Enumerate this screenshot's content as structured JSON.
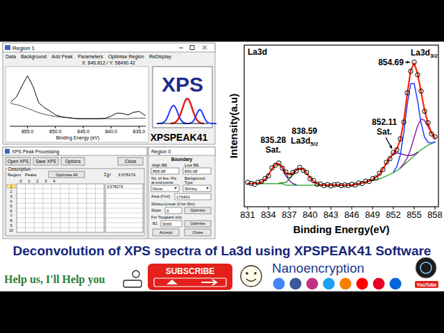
{
  "chart_data": [
    {
      "type": "line",
      "title": "La3d",
      "x_label": "Binding Energy(eV)",
      "y_label": "Intensity(a.u)",
      "x": [
        831,
        831.5,
        832,
        832.5,
        833,
        833.5,
        834,
        834.5,
        835,
        835.5,
        836,
        836.5,
        837,
        837.5,
        838,
        838.5,
        839,
        839.5,
        840,
        840.5,
        841,
        841.5,
        842,
        842.5,
        843,
        843.5,
        844,
        844.5,
        845,
        845.5,
        846,
        846.5,
        847,
        847.5,
        848,
        848.5,
        849,
        849.5,
        850,
        850.5,
        851,
        851.5,
        852,
        852.5,
        853,
        853.5,
        854,
        854.5,
        855,
        855.5,
        856,
        856.5,
        857,
        857.5,
        858
      ],
      "xlim": [
        830.5,
        858.5
      ],
      "xticks": [
        831,
        834,
        837,
        840,
        843,
        846,
        849,
        852,
        855,
        858
      ],
      "ylim": [
        0,
        105
      ],
      "tick_labels": "x",
      "grid": false,
      "series": [
        {
          "type": "line",
          "color": "#3cb043",
          "values": [
            15,
            15,
            15,
            15,
            15,
            15,
            15,
            15,
            15,
            15,
            15,
            14,
            14,
            14,
            14,
            14,
            14,
            14,
            14,
            14,
            14,
            14,
            14,
            14,
            14,
            14,
            14,
            14,
            14,
            14,
            14,
            14.5,
            15,
            15.5,
            16,
            16.5,
            17,
            17.5,
            18,
            19,
            20,
            21,
            22,
            23.5,
            25,
            27,
            29,
            31,
            33,
            35,
            37,
            38.5,
            40,
            41,
            42
          ]
        },
        {
          "type": "line",
          "color": "#6a1fb0",
          "values": [
            null,
            null,
            null,
            15.3,
            16.0,
            17.7,
            20.7,
            24.6,
            27.5,
            27.7,
            25.0,
            20.2,
            17.0,
            15.1,
            14.3,
            null,
            null,
            null,
            null,
            null,
            null,
            null,
            null,
            null,
            null,
            null,
            null,
            null,
            null,
            null,
            null,
            null,
            null,
            null,
            null,
            null,
            null,
            null,
            null,
            null,
            null,
            null,
            null,
            null,
            null,
            null,
            null,
            null,
            null,
            null,
            null,
            null,
            null,
            null,
            null
          ]
        },
        {
          "type": "line",
          "color": "#1f8f2a",
          "values": [
            null,
            null,
            null,
            null,
            null,
            null,
            null,
            null,
            null,
            15.2,
            15.7,
            15.8,
            17.9,
            20.7,
            23.5,
            25.0,
            24.2,
            21.8,
            18.8,
            16.4,
            15.0,
            14.3,
            null,
            null,
            null,
            null,
            null,
            null,
            null,
            null,
            null,
            null,
            null,
            null,
            null,
            null,
            null,
            null,
            null,
            null,
            null,
            null,
            null,
            null,
            null,
            null,
            null,
            null,
            null,
            null,
            null,
            null,
            null,
            null,
            null
          ]
        },
        {
          "type": "line",
          "color": "#7a1fa2",
          "values": [
            null,
            null,
            null,
            null,
            null,
            null,
            null,
            null,
            null,
            null,
            null,
            null,
            null,
            null,
            null,
            null,
            null,
            null,
            null,
            null,
            null,
            null,
            null,
            null,
            null,
            null,
            null,
            null,
            null,
            null,
            null,
            null,
            null,
            null,
            null,
            16.8,
            17.7,
            19.1,
            21.2,
            24.6,
            28.3,
            31.8,
            34.0,
            35.0,
            34.5,
            33.8,
            33.2,
            33.2,
            34.0,
            35.4,
            null,
            null,
            null,
            null,
            null
          ]
        },
        {
          "type": "line",
          "color": "#1e3cff",
          "values": [
            null,
            null,
            null,
            null,
            null,
            null,
            null,
            null,
            null,
            null,
            null,
            null,
            null,
            null,
            null,
            null,
            null,
            null,
            null,
            null,
            null,
            null,
            null,
            null,
            null,
            null,
            null,
            null,
            null,
            null,
            null,
            null,
            null,
            null,
            null,
            null,
            null,
            null,
            null,
            null,
            null,
            null,
            22.6,
            26.1,
            33.6,
            47.9,
            66.3,
            79.9,
            80.1,
            68.4,
            54.3,
            45.1,
            41.9,
            41.4,
            42.1
          ]
        },
        {
          "type": "line",
          "color": "#8e24aa",
          "values": [
            null,
            null,
            null,
            null,
            null,
            null,
            null,
            null,
            null,
            null,
            null,
            null,
            null,
            null,
            null,
            null,
            null,
            null,
            null,
            null,
            null,
            null,
            null,
            null,
            null,
            null,
            null,
            null,
            null,
            null,
            null,
            null,
            null,
            null,
            null,
            null,
            null,
            null,
            null,
            null,
            null,
            null,
            null,
            null,
            25.2,
            27.9,
            31.7,
            37.5,
            45.1,
            52.6,
            57.0,
            56.1,
            52.1,
            47.5,
            44.7
          ]
        },
        {
          "type": "line",
          "color": "#ff2200",
          "values": [
            15.0,
            15.0,
            15.1,
            15.3,
            16.0,
            17.7,
            20.7,
            24.6,
            27.5,
            27.9,
            25.7,
            22.0,
            20.9,
            21.8,
            23.8,
            25.0,
            24.2,
            21.8,
            18.8,
            16.4,
            15.0,
            14.3,
            14.1,
            14.0,
            14.0,
            14.0,
            14.0,
            14.0,
            14.0,
            14.0,
            14.0,
            14.5,
            15.0,
            15.5,
            16.1,
            16.8,
            17.7,
            19.1,
            21.2,
            24.6,
            28.3,
            31.8,
            34.6,
            37.6,
            43.3,
            55.6,
            73.2,
            88.6,
            93.2,
            86.4,
            74.4,
            62.7,
            54.0,
            47.9,
            44.8
          ]
        },
        {
          "type": "scatter",
          "marker": "circle",
          "color": "#000000",
          "values": [
            15.8,
            15.2,
            14.6,
            15.9,
            16.4,
            18.3,
            20.1,
            25.3,
            27.0,
            28.4,
            25.1,
            22.6,
            20.3,
            22.3,
            23.2,
            25.6,
            23.7,
            22.3,
            18.2,
            16.9,
            14.6,
            14.8,
            13.7,
            14.4,
            13.6,
            14.3,
            14.5,
            13.7,
            14.2,
            13.8,
            14.6,
            14.1,
            15.4,
            15.1,
            16.6,
            16.4,
            18.2,
            18.7,
            21.8,
            24.1,
            28.9,
            31.2,
            35.2,
            37.0,
            44.1,
            55.0,
            74.0,
            88.0,
            93.9,
            85.7,
            75.1,
            62.0,
            54.6,
            47.3,
            45.4
          ]
        }
      ],
      "annotations": [
        {
          "text": "835.28",
          "label": "Sat.",
          "x": 835.28,
          "y": 27.9
        },
        {
          "text": "838.59",
          "label": "La3d",
          "label_sub": "5/2",
          "x": 838.59,
          "y": 25.0
        },
        {
          "text": "852.11",
          "label": "Sat.",
          "x": 852.11,
          "y": 35.0
        },
        {
          "text": "854.69",
          "label": "La3d",
          "label_sub": "3/2",
          "x": 854.69,
          "y": 93.9
        }
      ]
    },
    {
      "type": "line",
      "x_label": "Binding Energy (eV)",
      "x": [
        831,
        832,
        833,
        834,
        835,
        836,
        837,
        838,
        839,
        840,
        841,
        842,
        843,
        844,
        845,
        846,
        847,
        848,
        849,
        850,
        851,
        852,
        853,
        854,
        855,
        856,
        857,
        858
      ],
      "xlim": [
        858.2,
        833.8
      ],
      "xticks": [
        {
          "value": 855,
          "label": "855.0"
        },
        {
          "value": 850,
          "label": "850.0"
        },
        {
          "value": 845,
          "label": "845.0"
        },
        {
          "value": 840,
          "label": "840.0"
        },
        {
          "value": 835,
          "label": "835.0"
        }
      ],
      "ylim": [
        0,
        105
      ],
      "tick_labels": "x",
      "grid": false,
      "series": [
        {
          "type": "line",
          "color": "#000000",
          "values": [
            15,
            15,
            15,
            15,
            15,
            15,
            14,
            14,
            14,
            14,
            14,
            14,
            14,
            14,
            14,
            14,
            15,
            16,
            17,
            18,
            20,
            22,
            25,
            29,
            33,
            37,
            40,
            42
          ]
        },
        {
          "type": "line",
          "color": "#000000",
          "values": [
            15,
            15.1,
            16,
            20.7,
            27.5,
            25.7,
            20.9,
            23.8,
            24.2,
            18.8,
            15,
            14.1,
            14,
            14,
            14,
            14,
            15,
            16.1,
            17.7,
            21.2,
            28.3,
            34.6,
            43.3,
            73.2,
            93.2,
            74.4,
            54,
            44.8
          ]
        }
      ]
    }
  ],
  "region_window": {
    "title": "Region 1",
    "menu": [
      "Data",
      "Background",
      "Add Peak",
      "Parameters",
      "Optimise Region",
      "ReDisplay"
    ],
    "cursor": "X: 846.812 / Y: 58490.42"
  },
  "logo": {
    "mark": "XPS",
    "name": "XPSPEAK41"
  },
  "processing_window": {
    "title": "XPS Peak Processing",
    "buttons": [
      "Open XPS",
      "Save XPS",
      "Options",
      "Close"
    ],
    "description": "Description",
    "region_label": "Region",
    "peaks_label": "Peaks",
    "peak_columns": [
      "0",
      "1",
      "2",
      "3",
      "4"
    ],
    "optimise": "Optimise All",
    "chi_label": "Σχ²",
    "chi_value": "3.578179",
    "regions": [
      "1",
      "2",
      "3",
      "4",
      "5",
      "6",
      "7",
      "8",
      "9",
      "10"
    ],
    "row_chi": "3.578179"
  },
  "region_dialog": {
    "title": "Region 0",
    "boundary": "Boundary",
    "high_label": "High BE",
    "low_label": "Low BE",
    "high": "858.08",
    "low": "830.08",
    "points_label": [
      "No. of Ave. Pts",
      "at end-points"
    ],
    "background_label": [
      "Background",
      "Type"
    ],
    "points": "None",
    "background": "Shirley",
    "area_label": "Area (I*eV)",
    "area": "176401",
    "linear_label": "Shirley+Linear (0 for Shir)",
    "slope_label": "Slope",
    "slope": "0",
    "optimise": "Optimise",
    "tougaard_label": "For Tougaard only",
    "b1_label": "B1",
    "b1": "3000",
    "accept": "Accept",
    "close": "Close"
  },
  "headline": "Deconvolution of XPS spectra of La3d using XPSPEAK41 Software",
  "footer": {
    "appeal": "Help us, I'll Help you",
    "button": "SUBSCRIBE",
    "channel": "Nanoencryption",
    "badge": "YouTube"
  }
}
